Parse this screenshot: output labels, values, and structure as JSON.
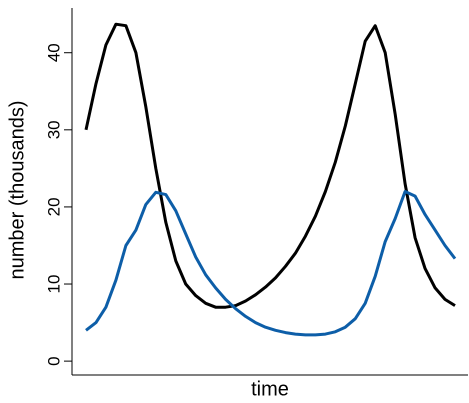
{
  "chart_data": {
    "type": "line",
    "xlabel": "time",
    "ylabel": "number (thousands)",
    "categories": [
      null,
      null,
      null,
      null,
      null,
      null,
      null,
      null,
      null,
      null,
      null,
      null,
      null,
      null,
      null,
      null,
      null,
      null,
      null,
      null,
      null,
      null,
      null,
      null,
      null,
      null,
      null,
      null,
      null,
      null,
      null,
      null,
      null,
      null,
      null,
      null,
      null,
      null
    ],
    "series": [
      {
        "color": "#000000",
        "values": [
          30,
          36,
          41,
          43.7,
          43.5,
          40,
          33,
          25,
          18,
          13,
          10,
          8.5,
          7.5,
          7,
          7,
          7.2,
          7.8,
          8.6,
          9.6,
          10.8,
          12.3,
          14,
          16.2,
          18.8,
          22,
          25.8,
          30.5,
          36,
          41.5,
          43.5,
          40,
          32,
          23,
          16,
          12,
          9.5,
          8,
          7.2
        ]
      },
      {
        "color": "#0d5ea8",
        "values": [
          4,
          5,
          7,
          10.5,
          15,
          17,
          20.3,
          21.9,
          21.6,
          19.5,
          16.5,
          13.5,
          11.2,
          9.5,
          8,
          6.8,
          5.8,
          5,
          4.4,
          4,
          3.7,
          3.5,
          3.4,
          3.4,
          3.5,
          3.8,
          4.4,
          5.5,
          7.5,
          11,
          15.5,
          18.5,
          22,
          21.4,
          19,
          17,
          15,
          13.3
        ]
      }
    ],
    "ylim": [
      -1.8,
      45.8
    ],
    "yticks": [
      0,
      10,
      20,
      30,
      40
    ],
    "grid": false
  }
}
